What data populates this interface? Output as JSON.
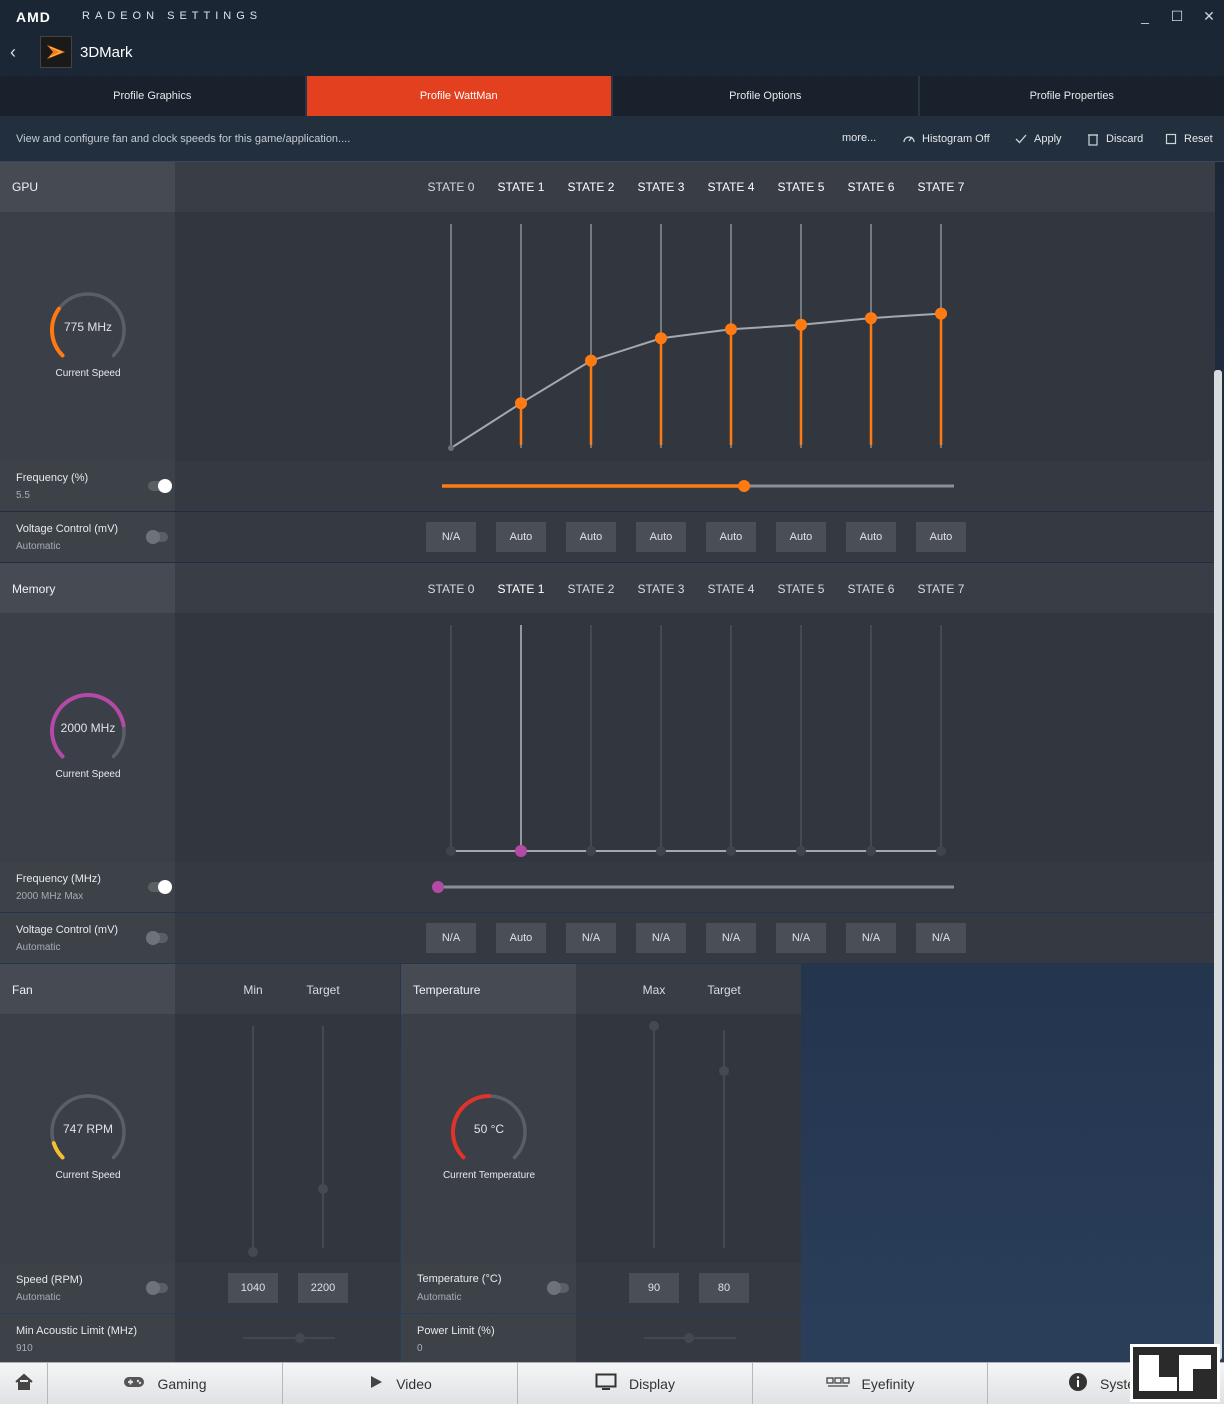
{
  "titlebar": {
    "brand": "AMD",
    "subtitle": "RADEON SETTINGS",
    "minimize": "_",
    "maximize": "☐",
    "close": "✕"
  },
  "app": {
    "back": "‹",
    "name": "3DMark"
  },
  "tabs": [
    {
      "label": "Profile Graphics",
      "active": false
    },
    {
      "label": "Profile WattMan",
      "active": true
    },
    {
      "label": "Profile Options",
      "active": false
    },
    {
      "label": "Profile Properties",
      "active": false
    }
  ],
  "toolbar": {
    "description": "View and configure fan and clock speeds for this game/application....",
    "more": "more...",
    "histogram": "Histogram Off",
    "apply": "Apply",
    "discard": "Discard",
    "reset": "Reset"
  },
  "gpu": {
    "title": "GPU",
    "states": [
      "STATE 0",
      "STATE 1",
      "STATE 2",
      "STATE 3",
      "STATE 4",
      "STATE 5",
      "STATE 6",
      "STATE 7"
    ],
    "gauge_value": "775 MHz",
    "gauge_caption": "Current Speed",
    "gauge_fraction": 0.3,
    "curve_levels": [
      0.0,
      0.2,
      0.39,
      0.49,
      0.53,
      0.55,
      0.58,
      0.6
    ],
    "frequency_label": "Frequency (%)",
    "frequency_value": "5.5",
    "frequency_slider": 0.59,
    "voltage_label": "Voltage Control (mV)",
    "voltage_sub": "Automatic",
    "voltages": [
      "N/A",
      "Auto",
      "Auto",
      "Auto",
      "Auto",
      "Auto",
      "Auto",
      "Auto"
    ],
    "accent": "#ff7b12"
  },
  "memory": {
    "title": "Memory",
    "states": [
      "STATE 0",
      "STATE 1",
      "STATE 2",
      "STATE 3",
      "STATE 4",
      "STATE 5",
      "STATE 6",
      "STATE 7"
    ],
    "gauge_value": "2000 MHz",
    "gauge_caption": "Current Speed",
    "gauge_fraction": 0.8,
    "frequency_label": "Frequency (MHz)",
    "frequency_value": "2000 MHz Max",
    "frequency_slider": 0.0,
    "voltage_label": "Voltage Control (mV)",
    "voltage_sub": "Automatic",
    "voltages": [
      "N/A",
      "Auto",
      "N/A",
      "N/A",
      "N/A",
      "N/A",
      "N/A",
      "N/A"
    ],
    "accent": "#b44aa6"
  },
  "fan": {
    "title": "Fan",
    "col_min": "Min",
    "col_target": "Target",
    "gauge_value": "747 RPM",
    "gauge_caption": "Current Speed",
    "gauge_fraction": 0.1,
    "speed_label": "Speed (RPM)",
    "speed_sub": "Automatic",
    "min_value": "1040",
    "target_value": "2200",
    "acoustic_label": "Min Acoustic Limit (MHz)",
    "acoustic_value": "910",
    "accent": "#f2c12e"
  },
  "temperature": {
    "title": "Temperature",
    "col_max": "Max",
    "col_target": "Target",
    "gauge_value": "50 °C",
    "gauge_caption": "Current Temperature",
    "gauge_fraction": 0.5,
    "temp_label": "Temperature (°C)",
    "temp_sub": "Automatic",
    "max_value": "90",
    "target_value": "80",
    "power_label": "Power Limit (%)",
    "power_value": "0",
    "accent": "#e0342b"
  },
  "bottomnav": [
    {
      "label": "",
      "icon": "home-icon"
    },
    {
      "label": "Gaming",
      "icon": "gamepad-icon"
    },
    {
      "label": "Video",
      "icon": "play-icon"
    },
    {
      "label": "Display",
      "icon": "monitor-icon"
    },
    {
      "label": "Eyefinity",
      "icon": "multi-display-icon"
    },
    {
      "label": "System",
      "icon": "info-icon"
    }
  ]
}
